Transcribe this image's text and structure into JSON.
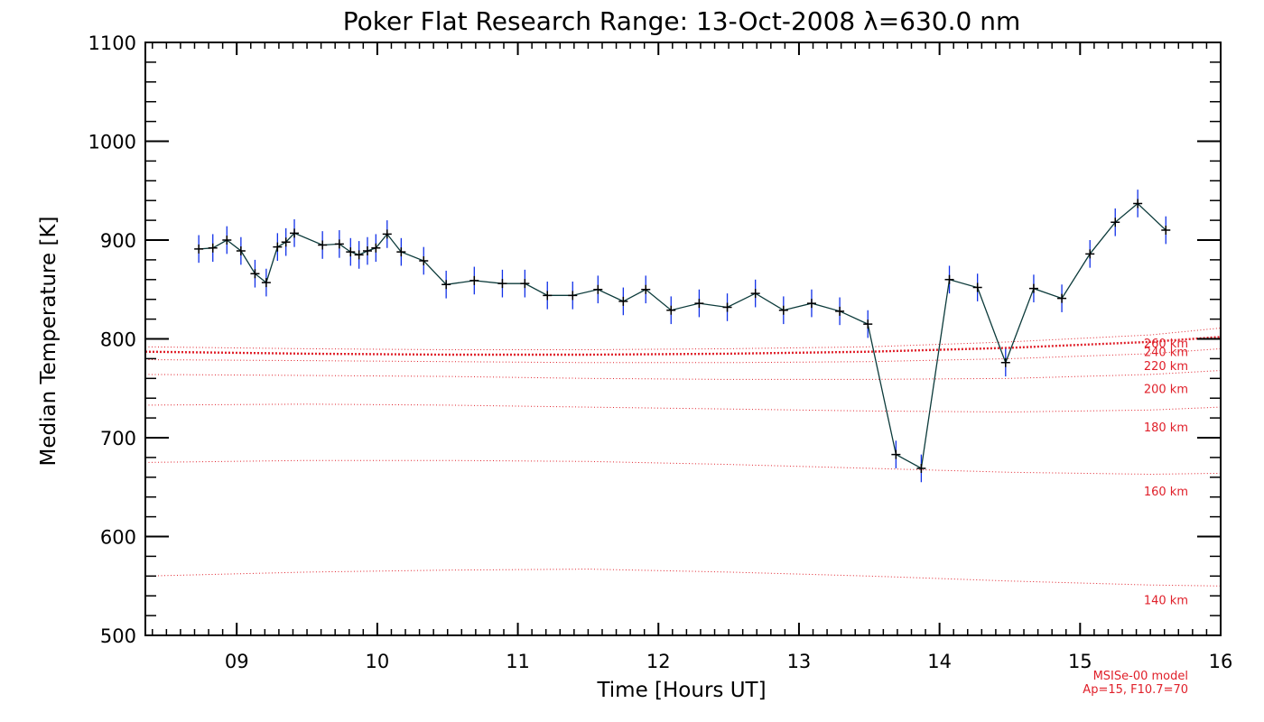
{
  "chart_data": {
    "type": "line",
    "title": "Poker Flat Research Range: 13-Oct-2008 λ=630.0 nm",
    "xlabel": "Time [Hours UT]",
    "ylabel": "Median Temperature [K]",
    "xlim": [
      8.35,
      16.0
    ],
    "ylim": [
      500,
      1100
    ],
    "xticks": [
      9,
      10,
      11,
      12,
      13,
      14,
      15,
      16
    ],
    "xtick_labels": [
      "09",
      "10",
      "11",
      "12",
      "13",
      "14",
      "15",
      "16"
    ],
    "yticks": [
      500,
      600,
      700,
      800,
      900,
      1000,
      1100
    ],
    "ytick_labels": [
      "500",
      "600",
      "700",
      "800",
      "900",
      "1000",
      "1100"
    ],
    "grid": false,
    "colors": {
      "measurement_line": "#0b3a3a",
      "error_bar": "#1030e8",
      "marker": "#000000",
      "model": "#e0202a"
    },
    "series": [
      {
        "x": [
          8.73,
          8.83,
          8.93,
          9.03,
          9.13,
          9.21,
          9.29,
          9.35,
          9.41,
          9.61,
          9.73,
          9.81,
          9.87,
          9.93,
          9.99,
          10.07,
          10.17,
          10.33,
          10.49,
          10.69,
          10.89,
          11.05,
          11.21,
          11.39,
          11.57,
          11.75,
          11.91,
          12.09,
          12.29,
          12.49,
          12.69,
          12.89,
          13.09,
          13.29,
          13.49,
          13.69,
          13.87,
          14.07,
          14.27,
          14.47,
          14.67,
          14.87,
          15.07,
          15.25,
          15.41,
          15.61
        ],
        "y": [
          891,
          892,
          900,
          889,
          866,
          857,
          893,
          898,
          907,
          895,
          896,
          888,
          885,
          889,
          892,
          906,
          888,
          879,
          855,
          859,
          856,
          856,
          844,
          844,
          850,
          838,
          850,
          829,
          836,
          832,
          846,
          829,
          836,
          828,
          815,
          683,
          669,
          860,
          852,
          776,
          851,
          841,
          886,
          918,
          937,
          910
        ],
        "error": [
          14,
          14,
          14,
          14,
          14,
          14,
          14,
          14,
          14,
          14,
          14,
          14,
          14,
          14,
          14,
          14,
          14,
          14,
          14,
          14,
          14,
          14,
          14,
          14,
          14,
          14,
          14,
          14,
          14,
          14,
          14,
          14,
          14,
          14,
          14,
          14,
          14,
          14,
          14,
          14,
          14,
          14,
          14,
          14,
          14,
          14
        ]
      }
    ],
    "model_curves": [
      {
        "name": "140 km",
        "x": [
          8.35,
          9.5,
          10.5,
          11.5,
          12.5,
          13.5,
          14.5,
          15.5,
          16.0
        ],
        "y": [
          560,
          564,
          566,
          567,
          564,
          560,
          555,
          551,
          550
        ]
      },
      {
        "name": "160 km",
        "x": [
          8.35,
          9.5,
          10.5,
          11.5,
          12.5,
          13.5,
          14.5,
          15.5,
          16.0
        ],
        "y": [
          675,
          677,
          677,
          676,
          673,
          669,
          665,
          663,
          664
        ]
      },
      {
        "name": "180 km",
        "x": [
          8.35,
          9.5,
          10.5,
          11.5,
          12.5,
          13.5,
          14.5,
          15.5,
          16.0
        ],
        "y": [
          733,
          734,
          733,
          731,
          729,
          727,
          726,
          728,
          731
        ]
      },
      {
        "name": "200 km",
        "x": [
          8.35,
          9.5,
          10.5,
          11.5,
          12.5,
          13.5,
          14.5,
          15.5,
          16.0
        ],
        "y": [
          764,
          763,
          762,
          760,
          759,
          759,
          760,
          764,
          768
        ]
      },
      {
        "name": "220 km",
        "x": [
          8.35,
          9.5,
          10.5,
          11.5,
          12.5,
          13.5,
          14.5,
          15.5,
          16.0
        ],
        "y": [
          779,
          778,
          777,
          776,
          776,
          777,
          780,
          785,
          790
        ]
      },
      {
        "name": "240 km",
        "x": [
          8.35,
          9.5,
          10.5,
          11.5,
          12.5,
          13.5,
          14.5,
          15.5,
          16.0
        ],
        "y": [
          787,
          785,
          784,
          784,
          785,
          787,
          791,
          797,
          802
        ]
      },
      {
        "name": "260 km",
        "x": [
          8.35,
          9.5,
          10.5,
          11.5,
          12.5,
          13.5,
          14.5,
          15.5,
          16.0
        ],
        "y": [
          792,
          790,
          789,
          789,
          790,
          792,
          797,
          804,
          811
        ]
      }
    ],
    "model_label_y": [
      {
        "name": "140 km",
        "y": 536
      },
      {
        "name": "160 km",
        "y": 646
      },
      {
        "name": "180 km",
        "y": 711
      },
      {
        "name": "200 km",
        "y": 750
      },
      {
        "name": "220 km",
        "y": 773
      },
      {
        "name": "240 km",
        "y": 787
      },
      {
        "name": "260 km",
        "y": 796
      }
    ],
    "model_note": [
      "MSISe-00 model",
      "Ap=15, F10.7=70"
    ]
  }
}
